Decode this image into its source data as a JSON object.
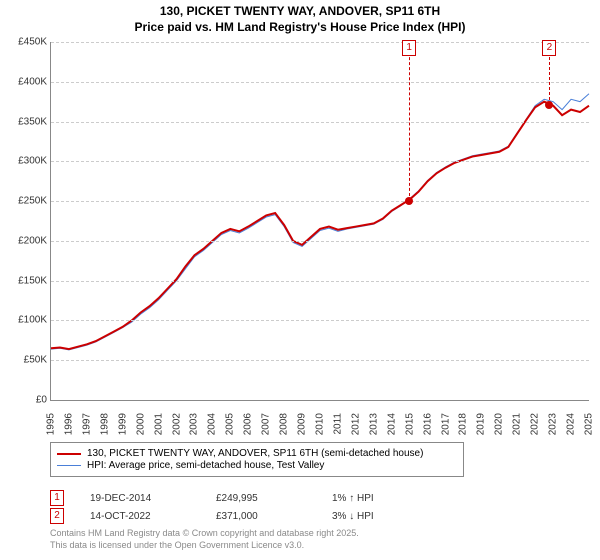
{
  "title_line1": "130, PICKET TWENTY WAY, ANDOVER, SP11 6TH",
  "title_line2": "Price paid vs. HM Land Registry's House Price Index (HPI)",
  "chart": {
    "type": "line",
    "background_color": "#ffffff",
    "grid_color": "#cccccc",
    "axis_color": "#888888",
    "ylim": [
      0,
      450000
    ],
    "ytick_step": 50000,
    "yticks": [
      0,
      50000,
      100000,
      150000,
      200000,
      250000,
      300000,
      350000,
      400000,
      450000
    ],
    "ytick_labels": [
      "£0",
      "£50K",
      "£100K",
      "£150K",
      "£200K",
      "£250K",
      "£300K",
      "£350K",
      "£400K",
      "£450K"
    ],
    "xlim": [
      1995,
      2025
    ],
    "xticks": [
      1995,
      1996,
      1997,
      1998,
      1999,
      2000,
      2001,
      2002,
      2003,
      2004,
      2005,
      2006,
      2007,
      2008,
      2009,
      2010,
      2011,
      2012,
      2013,
      2014,
      2015,
      2016,
      2017,
      2018,
      2019,
      2020,
      2021,
      2022,
      2023,
      2024,
      2025
    ],
    "series": [
      {
        "name": "130, PICKET TWENTY WAY, ANDOVER, SP11 6TH (semi-detached house)",
        "color": "#cc0000",
        "line_width": 2,
        "data": [
          [
            1995,
            65000
          ],
          [
            1995.5,
            66000
          ],
          [
            1996,
            64000
          ],
          [
            1996.5,
            67000
          ],
          [
            1997,
            70000
          ],
          [
            1997.5,
            74000
          ],
          [
            1998,
            80000
          ],
          [
            1998.5,
            86000
          ],
          [
            1999,
            92000
          ],
          [
            1999.5,
            100000
          ],
          [
            2000,
            110000
          ],
          [
            2000.5,
            118000
          ],
          [
            2001,
            128000
          ],
          [
            2001.5,
            140000
          ],
          [
            2002,
            152000
          ],
          [
            2002.5,
            168000
          ],
          [
            2003,
            182000
          ],
          [
            2003.5,
            190000
          ],
          [
            2004,
            200000
          ],
          [
            2004.5,
            210000
          ],
          [
            2005,
            215000
          ],
          [
            2005.5,
            212000
          ],
          [
            2006,
            218000
          ],
          [
            2006.5,
            225000
          ],
          [
            2007,
            232000
          ],
          [
            2007.5,
            235000
          ],
          [
            2008,
            220000
          ],
          [
            2008.5,
            200000
          ],
          [
            2009,
            195000
          ],
          [
            2009.5,
            205000
          ],
          [
            2010,
            215000
          ],
          [
            2010.5,
            218000
          ],
          [
            2011,
            214000
          ],
          [
            2011.5,
            216000
          ],
          [
            2012,
            218000
          ],
          [
            2012.5,
            220000
          ],
          [
            2013,
            222000
          ],
          [
            2013.5,
            228000
          ],
          [
            2014,
            238000
          ],
          [
            2014.5,
            245000
          ],
          [
            2015,
            252000
          ],
          [
            2015.5,
            262000
          ],
          [
            2016,
            275000
          ],
          [
            2016.5,
            285000
          ],
          [
            2017,
            292000
          ],
          [
            2017.5,
            298000
          ],
          [
            2018,
            302000
          ],
          [
            2018.5,
            306000
          ],
          [
            2019,
            308000
          ],
          [
            2019.5,
            310000
          ],
          [
            2020,
            312000
          ],
          [
            2020.5,
            318000
          ],
          [
            2021,
            335000
          ],
          [
            2021.5,
            352000
          ],
          [
            2022,
            368000
          ],
          [
            2022.5,
            375000
          ],
          [
            2023,
            370000
          ],
          [
            2023.5,
            358000
          ],
          [
            2024,
            365000
          ],
          [
            2024.5,
            362000
          ],
          [
            2025,
            370000
          ]
        ]
      },
      {
        "name": "HPI: Average price, semi-detached house, Test Valley",
        "color": "#4a7fd8",
        "line_width": 1,
        "data": [
          [
            1995,
            64000
          ],
          [
            1995.5,
            65000
          ],
          [
            1996,
            63000
          ],
          [
            1996.5,
            66000
          ],
          [
            1997,
            69000
          ],
          [
            1997.5,
            73000
          ],
          [
            1998,
            79000
          ],
          [
            1998.5,
            85000
          ],
          [
            1999,
            91000
          ],
          [
            1999.5,
            98000
          ],
          [
            2000,
            108000
          ],
          [
            2000.5,
            116000
          ],
          [
            2001,
            126000
          ],
          [
            2001.5,
            138000
          ],
          [
            2002,
            150000
          ],
          [
            2002.5,
            165000
          ],
          [
            2003,
            180000
          ],
          [
            2003.5,
            188000
          ],
          [
            2004,
            198000
          ],
          [
            2004.5,
            208000
          ],
          [
            2005,
            213000
          ],
          [
            2005.5,
            210000
          ],
          [
            2006,
            216000
          ],
          [
            2006.5,
            223000
          ],
          [
            2007,
            230000
          ],
          [
            2007.5,
            233000
          ],
          [
            2008,
            218000
          ],
          [
            2008.5,
            198000
          ],
          [
            2009,
            193000
          ],
          [
            2009.5,
            203000
          ],
          [
            2010,
            213000
          ],
          [
            2010.5,
            216000
          ],
          [
            2011,
            212000
          ],
          [
            2011.5,
            215000
          ],
          [
            2012,
            217000
          ],
          [
            2012.5,
            219000
          ],
          [
            2013,
            221000
          ],
          [
            2013.5,
            227000
          ],
          [
            2014,
            237000
          ],
          [
            2014.5,
            244000
          ],
          [
            2015,
            253000
          ],
          [
            2015.5,
            263000
          ],
          [
            2016,
            276000
          ],
          [
            2016.5,
            286000
          ],
          [
            2017,
            293000
          ],
          [
            2017.5,
            299000
          ],
          [
            2018,
            303000
          ],
          [
            2018.5,
            307000
          ],
          [
            2019,
            309000
          ],
          [
            2019.5,
            311000
          ],
          [
            2020,
            313000
          ],
          [
            2020.5,
            319000
          ],
          [
            2021,
            336000
          ],
          [
            2021.5,
            353000
          ],
          [
            2022,
            370000
          ],
          [
            2022.5,
            378000
          ],
          [
            2023,
            375000
          ],
          [
            2023.5,
            365000
          ],
          [
            2024,
            378000
          ],
          [
            2024.5,
            375000
          ],
          [
            2025,
            385000
          ]
        ]
      }
    ],
    "sale_markers": [
      {
        "id": "1",
        "x": 2014.97,
        "y": 249995,
        "color": "#cc0000"
      },
      {
        "id": "2",
        "x": 2022.79,
        "y": 371000,
        "color": "#cc0000"
      }
    ]
  },
  "legend": {
    "items": [
      {
        "color": "#cc0000",
        "width": 2,
        "label": "130, PICKET TWENTY WAY, ANDOVER, SP11 6TH (semi-detached house)"
      },
      {
        "color": "#4a7fd8",
        "width": 1,
        "label": "HPI: Average price, semi-detached house, Test Valley"
      }
    ]
  },
  "sales_table": [
    {
      "id": "1",
      "color": "#cc0000",
      "date": "19-DEC-2014",
      "price": "£249,995",
      "diff": "1% ↑ HPI"
    },
    {
      "id": "2",
      "color": "#cc0000",
      "date": "14-OCT-2022",
      "price": "£371,000",
      "diff": "3% ↓ HPI"
    }
  ],
  "attribution_line1": "Contains HM Land Registry data © Crown copyright and database right 2025.",
  "attribution_line2": "This data is licensed under the Open Government Licence v3.0."
}
